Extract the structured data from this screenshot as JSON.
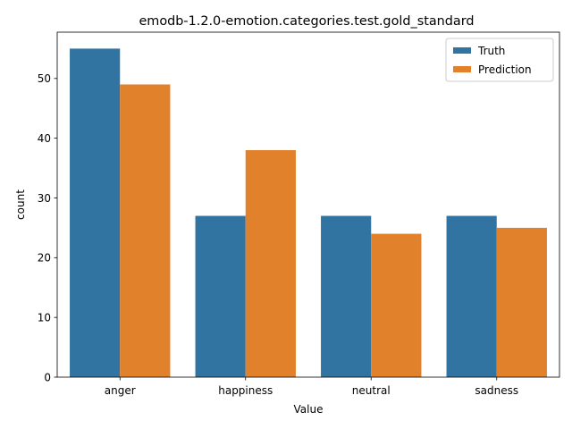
{
  "chart_data": {
    "type": "bar",
    "title": "emodb-1.2.0-emotion.categories.test.gold_standard",
    "xlabel": "Value",
    "ylabel": "count",
    "categories": [
      "anger",
      "happiness",
      "neutral",
      "sadness"
    ],
    "series": [
      {
        "name": "Truth",
        "values": [
          55,
          27,
          27,
          27
        ],
        "color": "#3274a1"
      },
      {
        "name": "Prediction",
        "values": [
          49,
          38,
          24,
          25
        ],
        "color": "#e1812c"
      }
    ],
    "ylim": [
      0,
      57.75
    ],
    "yticks": [
      0,
      10,
      20,
      30,
      40,
      50
    ],
    "grid": false,
    "legend_position": "top-right"
  }
}
